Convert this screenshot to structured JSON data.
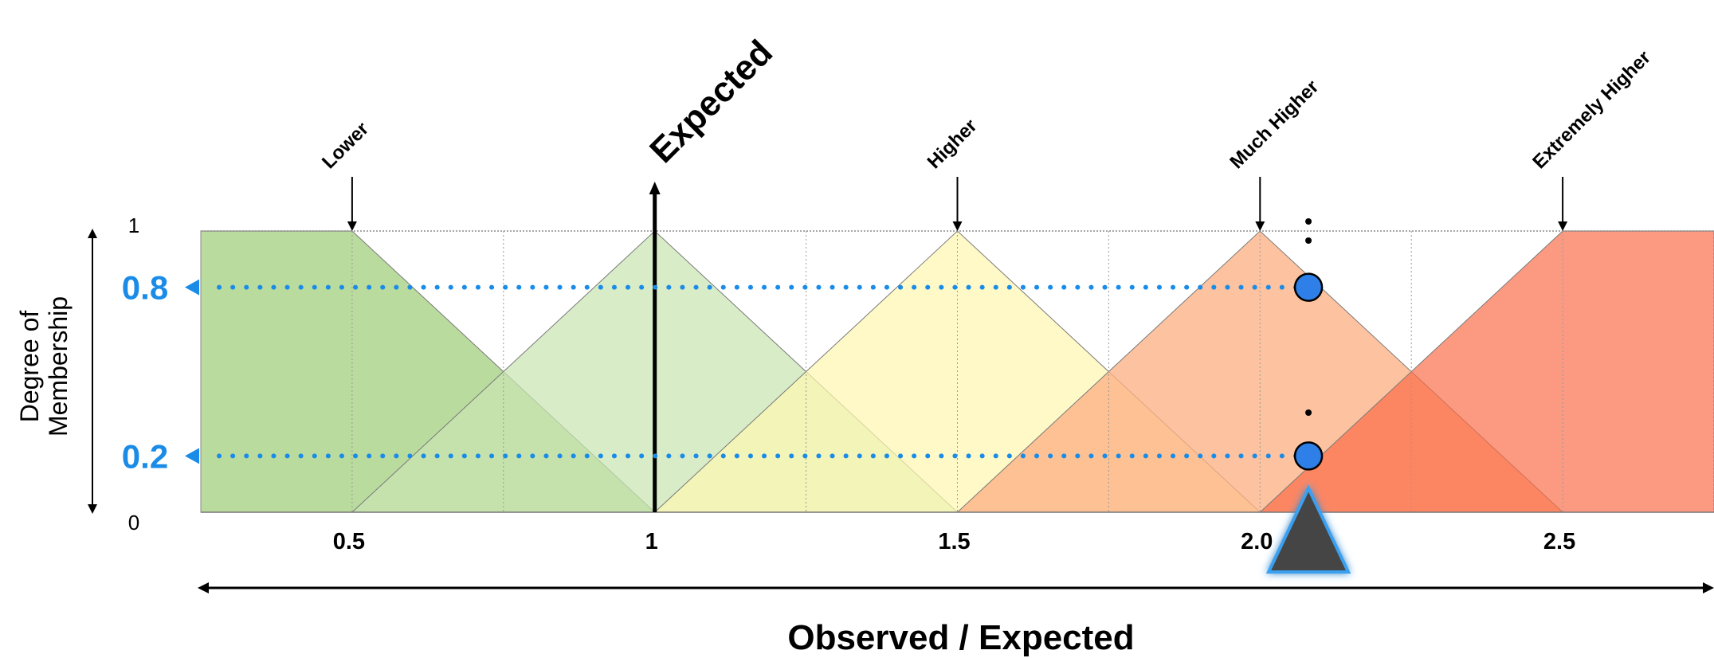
{
  "diagram": {
    "x_axis_title": "Observed / Expected",
    "y_axis_title": "Degree of Membership",
    "y_axis_title_lines": [
      "Degree of",
      "Membership"
    ],
    "y_ticks": {
      "top": "1",
      "bottom": "0"
    },
    "x_ticks": [
      {
        "label": "0.5",
        "value": 0.5
      },
      {
        "label": "1",
        "value": 1.0
      },
      {
        "label": "1.5",
        "value": 1.5
      },
      {
        "label": "2.0",
        "value": 2.0
      },
      {
        "label": "2.5",
        "value": 2.5
      }
    ],
    "x_range": [
      0.25,
      2.75
    ],
    "y_range": [
      0,
      1
    ],
    "membership_levels": [
      {
        "label": "0.8",
        "value": 0.8
      },
      {
        "label": "0.2",
        "value": 0.2
      }
    ],
    "expected_marker": {
      "label": "Expected",
      "value": 1.0
    },
    "fuzzy_sets": [
      {
        "label": "Lower",
        "peak": 0.5,
        "shape": "left-shoulder",
        "end": 1.0,
        "fill": "#a7d183",
        "opacity": 0.78
      },
      {
        "label": "",
        "peak": 1.0,
        "start": 0.5,
        "end": 1.5,
        "shape": "triangle",
        "fill": "#c9e5b3",
        "opacity": 0.72
      },
      {
        "label": "Higher",
        "peak": 1.5,
        "start": 1.0,
        "end": 2.0,
        "shape": "triangle",
        "fill": "#fdf6b0",
        "opacity": 0.72
      },
      {
        "label": "Much Higher",
        "peak": 2.0,
        "start": 1.5,
        "end": 2.5,
        "shape": "triangle",
        "fill": "#fcb184",
        "opacity": 0.78
      },
      {
        "label": "Extremely Higher",
        "peak": 2.5,
        "start": 2.0,
        "shape": "right-shoulder",
        "fill": "#fb6a45",
        "opacity": 0.68
      }
    ],
    "observed_value": 2.08,
    "colors": {
      "accent_blue": "#1a8ce8",
      "point_fill": "#2f7fe8",
      "pointer_fill": "#444444",
      "pointer_glow": "#3aa0f0",
      "grid": "#9a9a9a"
    }
  }
}
